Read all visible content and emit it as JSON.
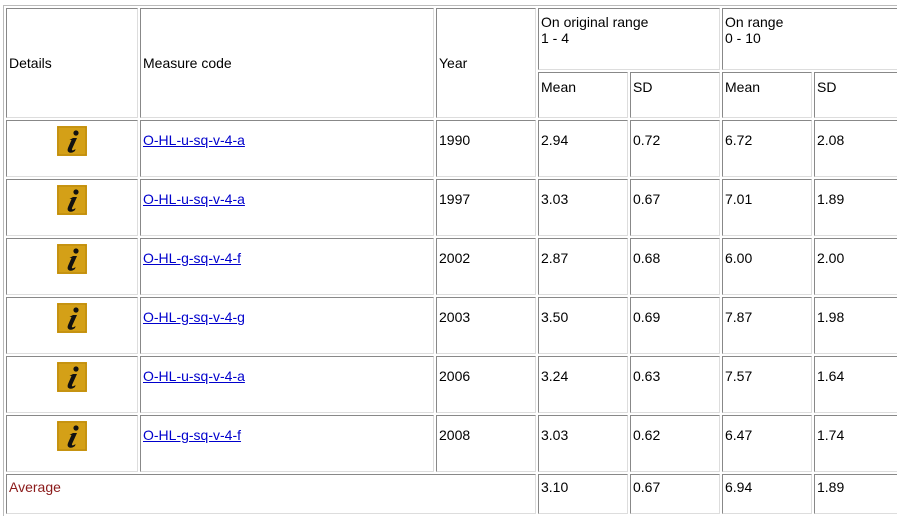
{
  "table": {
    "header": {
      "details": "Details",
      "measure_code": "Measure code",
      "year": "Year",
      "range_original": [
        "On original range",
        "1 - 4"
      ],
      "range_scaled": [
        "On range",
        "0 - 10"
      ],
      "mean_1": "Mean",
      "sd_1": "SD",
      "mean_2": "Mean",
      "sd_2": "SD"
    },
    "rows": [
      [
        "O-HL-u-sq-v-4-a",
        "1990",
        "2.94",
        "0.72",
        "6.72",
        "2.08"
      ],
      [
        "O-HL-u-sq-v-4-a",
        "1997",
        "3.03",
        "0.67",
        "7.01",
        "1.89"
      ],
      [
        "O-HL-g-sq-v-4-f",
        "2002",
        "2.87",
        "0.68",
        "6.00",
        "2.00"
      ],
      [
        "O-HL-g-sq-v-4-g",
        "2003",
        "3.50",
        "0.69",
        "7.87",
        "1.98"
      ],
      [
        "O-HL-u-sq-v-4-a",
        "2006",
        "3.24",
        "0.63",
        "7.57",
        "1.64"
      ],
      [
        "O-HL-g-sq-v-4-f",
        "2008",
        "3.03",
        "0.62",
        "6.47",
        "1.74"
      ]
    ],
    "average": {
      "label": "Average",
      "values": [
        "3.10",
        "0.67",
        "6.94",
        "1.89"
      ]
    }
  }
}
